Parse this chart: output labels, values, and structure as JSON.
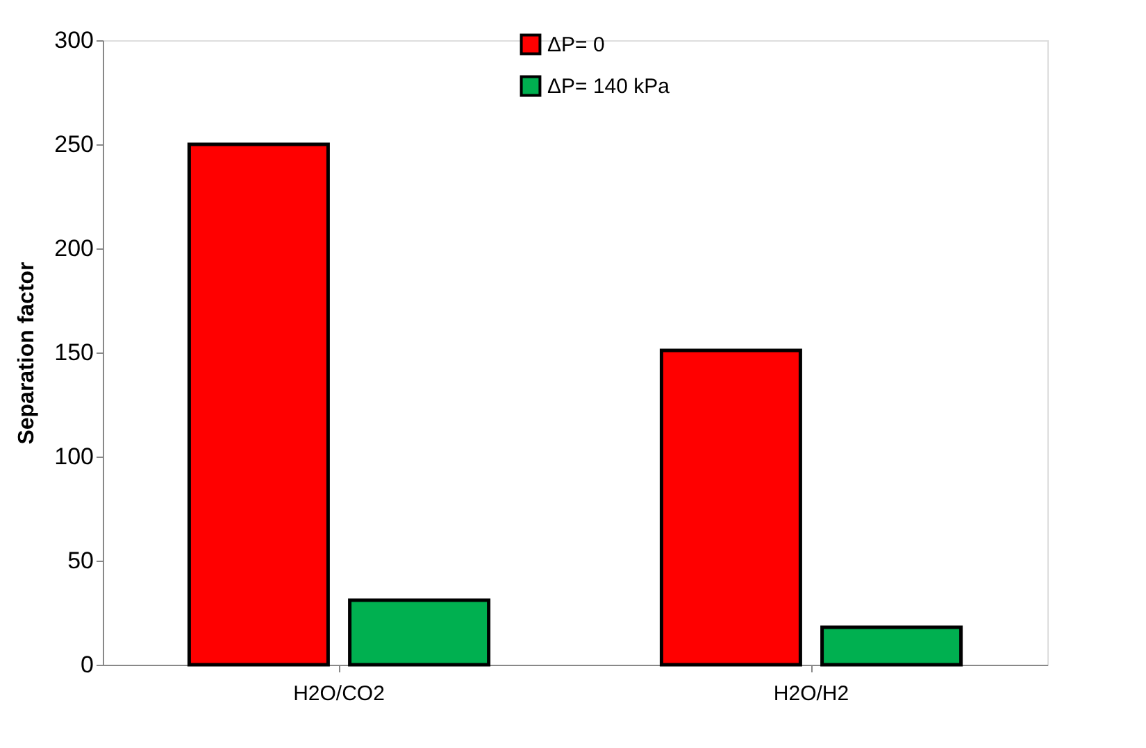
{
  "chart_data": {
    "type": "bar",
    "ylabel": "Separation factor",
    "categories": [
      "H2O/CO2",
      "H2O/H2"
    ],
    "series": [
      {
        "name": "ΔP= 0",
        "color": "#ff0000",
        "values": [
          250,
          151
        ]
      },
      {
        "name": "ΔP= 140 kPa",
        "color": "#00b050",
        "values": [
          31,
          18
        ]
      }
    ],
    "ylim": [
      0,
      300
    ],
    "yticks": [
      0,
      50,
      100,
      150,
      200,
      250,
      300
    ],
    "grid": false,
    "legend": "top"
  }
}
